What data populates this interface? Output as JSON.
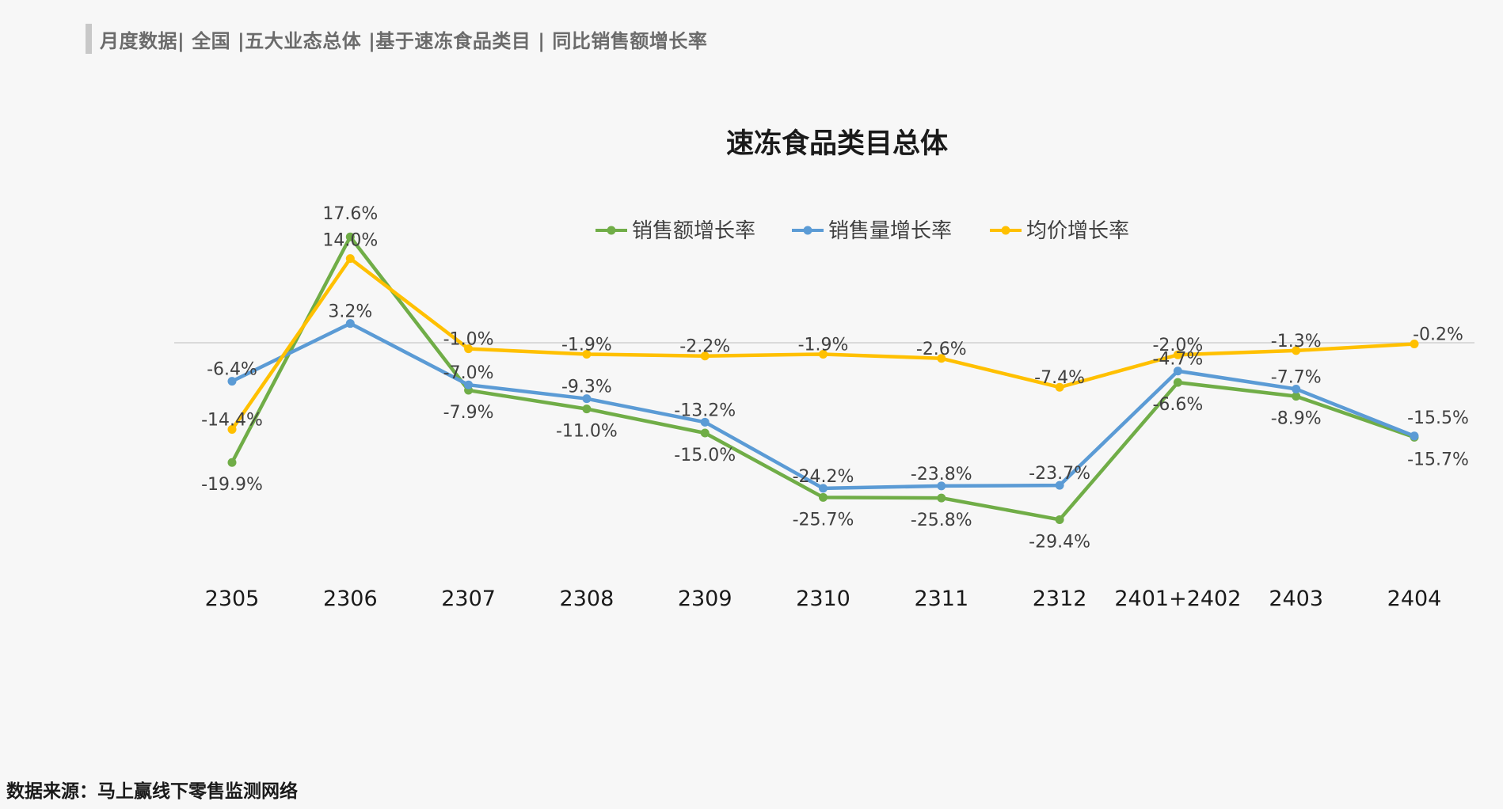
{
  "header": {
    "title": "月度数据| 全国 |五大业态总体 |基于速冻食品类目 | 同比销售额增长率"
  },
  "footer": {
    "source": "数据来源：马上赢线下零售监测网络"
  },
  "chart_data": {
    "type": "line",
    "title": "速冻食品类目总体",
    "categories": [
      "2305",
      "2306",
      "2307",
      "2308",
      "2309",
      "2310",
      "2311",
      "2312",
      "2401+2402",
      "2403",
      "2404"
    ],
    "series": [
      {
        "name": "销售额增长率",
        "color": "#70ad47",
        "values": [
          -19.9,
          17.6,
          -7.9,
          -11.0,
          -15.0,
          -25.7,
          -25.8,
          -29.4,
          -6.6,
          -8.9,
          -15.7
        ],
        "labels": [
          "-19.9%",
          "17.6%",
          "-7.9%",
          "-11.0%",
          "-15.0%",
          "-25.7%",
          "-25.8%",
          "-29.4%",
          "-6.6%",
          "-8.9%",
          "-15.7%"
        ]
      },
      {
        "name": "销售量增长率",
        "color": "#5b9bd5",
        "values": [
          -6.4,
          3.2,
          -7.0,
          -9.3,
          -13.2,
          -24.2,
          -23.8,
          -23.7,
          -4.7,
          -7.7,
          -15.5
        ],
        "labels": [
          "-6.4%",
          "3.2%",
          "-7.0%",
          "-9.3%",
          "-13.2%",
          "-24.2%",
          "-23.8%",
          "-23.7%",
          "-4.7%",
          "-7.7%",
          "-15.5%"
        ]
      },
      {
        "name": "均价增长率",
        "color": "#ffc000",
        "values": [
          -14.4,
          14.0,
          -1.0,
          -1.9,
          -2.2,
          -1.9,
          -2.6,
          -7.4,
          -2.0,
          -1.3,
          -0.2
        ],
        "labels": [
          "-14.4%",
          "14.0%",
          "-1.0%",
          "-1.9%",
          "-2.2%",
          "-1.9%",
          "-2.6%",
          "-7.4%",
          "-2.0%",
          "-1.3%",
          "-0.2%"
        ]
      }
    ],
    "ylim": [
      -30,
      18
    ],
    "legend_position": "top-center",
    "grid": false
  }
}
